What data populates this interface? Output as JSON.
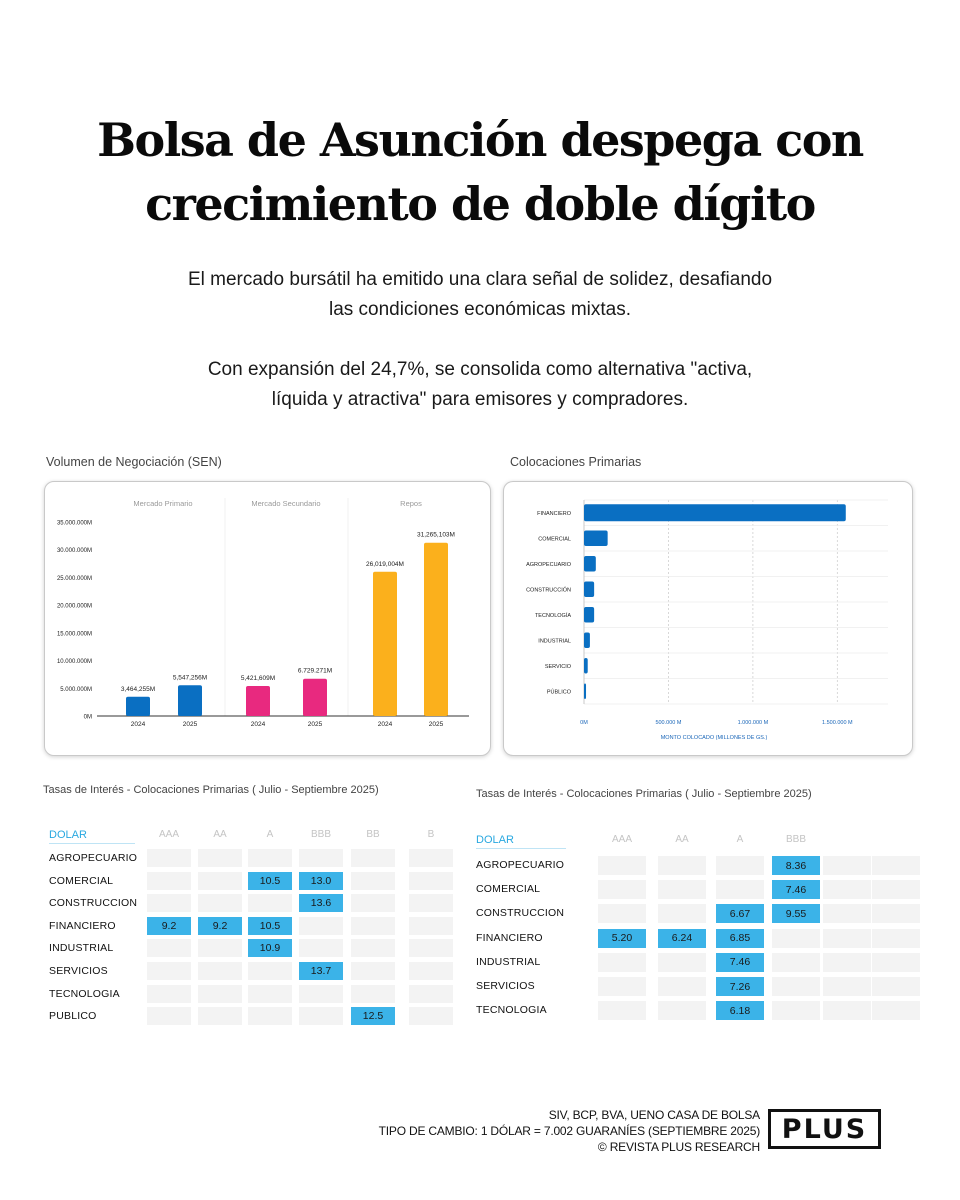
{
  "headline": {
    "line1": "Bolsa de Asunción despega con",
    "line2": "crecimiento de doble dígito"
  },
  "intro": {
    "p1_line1": "El mercado bursátil ha emitido una clara señal de solidez, desafiando",
    "p1_line2": "las condiciones económicas mixtas.",
    "p2_line1": "Con expansión del 24,7%, se consolida como alternativa \"activa,",
    "p2_line2": "líquida y atractiva\" para emisores y compradores."
  },
  "colors": {
    "blue": "#0a6fc2",
    "pink": "#e8297f",
    "yellow": "#fbb01c",
    "table_fill": "#3bb3e8",
    "table_empty": "#f3f3f3"
  },
  "chart_data": [
    {
      "id": "volumen",
      "type": "bar",
      "title": "Volumen de Negociación (SEN)",
      "groups": [
        "Mercado Primario",
        "Mercado Secundario",
        "Repos"
      ],
      "categories": [
        "2024",
        "2025",
        "2024",
        "2025",
        "2024",
        "2025"
      ],
      "values": [
        3464255,
        5547256,
        5421609,
        6729271,
        26019004,
        31265103
      ],
      "value_labels": [
        "3,464,255M",
        "5,547,256M",
        "5,421,609M",
        "6.729.271M",
        "26,019,004M",
        "31,265,103M"
      ],
      "bar_group": [
        0,
        0,
        1,
        1,
        2,
        2
      ],
      "yticks": [
        0,
        5000000,
        10000000,
        15000000,
        20000000,
        25000000,
        30000000,
        35000000
      ],
      "ytick_labels": [
        "0M",
        "5.000.000M",
        "10.000.000M",
        "15.000.000M",
        "20.000.000M",
        "25.000.000M",
        "30.000.000M",
        "35.000.000M"
      ],
      "ylim": [
        0,
        35000000
      ],
      "grid": false
    },
    {
      "id": "colocaciones",
      "type": "bar",
      "orientation": "horizontal",
      "title": "Colocaciones Primarias",
      "categories": [
        "FINANCIERO",
        "COMERCIAL",
        "AGROPECUARIO",
        "CONSTRUCCIÓN",
        "TECNOLOGÍA",
        "INDUSTRIAL",
        "SERVICIO",
        "PÚBLICO"
      ],
      "values": [
        1550000,
        140000,
        70000,
        60000,
        60000,
        35000,
        22000,
        12000
      ],
      "xticks": [
        0,
        500000,
        1000000,
        1500000
      ],
      "xtick_labels": [
        "0M",
        "500.000 M",
        "1.000.000 M",
        "1.500.000 M"
      ],
      "xlim": [
        0,
        1800000
      ],
      "xlabel": "MONTO COLOCADO (MILLONES DE GS.)",
      "grid": true
    }
  ],
  "rates_gs": {
    "title": "Tasas de Interés - Colocaciones Primarias ( Julio -  Septiembre 2025)",
    "currency_label": "DOLAR",
    "columns": [
      "AAA",
      "AA",
      "A",
      "BBB",
      "BB",
      "B"
    ],
    "rows": [
      {
        "label": "AGROPECUARIO",
        "cells": [
          "",
          "",
          "",
          "",
          "",
          ""
        ]
      },
      {
        "label": "COMERCIAL",
        "cells": [
          "",
          "",
          "10.5",
          "13.0",
          "",
          ""
        ]
      },
      {
        "label": "CONSTRUCCION",
        "cells": [
          "",
          "",
          "",
          "13.6",
          "",
          ""
        ]
      },
      {
        "label": "FINANCIERO",
        "cells": [
          "9.2",
          "9.2",
          "10.5",
          "",
          "",
          ""
        ]
      },
      {
        "label": "INDUSTRIAL",
        "cells": [
          "",
          "",
          "10.9",
          "",
          "",
          ""
        ]
      },
      {
        "label": "SERVICIOS",
        "cells": [
          "",
          "",
          "",
          "13.7",
          "",
          ""
        ]
      },
      {
        "label": "TECNOLOGIA",
        "cells": [
          "",
          "",
          "",
          "",
          "",
          ""
        ]
      },
      {
        "label": "PUBLICO",
        "cells": [
          "",
          "",
          "",
          "",
          "12.5",
          ""
        ]
      }
    ]
  },
  "rates_usd": {
    "title": "Tasas de Interés - Colocaciones Primarias ( Julio -  Septiembre 2025)",
    "currency_label": "DOLAR",
    "columns": [
      "AAA",
      "AA",
      "A",
      "BBB",
      "",
      ""
    ],
    "rows": [
      {
        "label": "AGROPECUARIO",
        "cells": [
          "",
          "",
          "",
          "8.36",
          "",
          ""
        ]
      },
      {
        "label": "COMERCIAL",
        "cells": [
          "",
          "",
          "",
          "7.46",
          "",
          ""
        ]
      },
      {
        "label": "CONSTRUCCION",
        "cells": [
          "",
          "",
          "6.67",
          "9.55",
          "",
          ""
        ]
      },
      {
        "label": "FINANCIERO",
        "cells": [
          "5.20",
          "6.24",
          "6.85",
          "",
          "",
          ""
        ]
      },
      {
        "label": "INDUSTRIAL",
        "cells": [
          "",
          "",
          "7.46",
          "",
          "",
          ""
        ]
      },
      {
        "label": "SERVICIOS",
        "cells": [
          "",
          "",
          "7.26",
          "",
          "",
          ""
        ]
      },
      {
        "label": "TECNOLOGIA",
        "cells": [
          "",
          "",
          "6.18",
          "",
          "",
          ""
        ]
      }
    ]
  },
  "footer": {
    "line1": "SIV, BCP, BVA, UENO CASA DE BOLSA",
    "line2": "TIPO DE CAMBIO: 1 DÓLAR = 7.002 GUARANÍES (SEPTIEMBRE 2025)",
    "line3": "© REVISTA PLUS RESEARCH",
    "logo_text": "PLUS"
  }
}
